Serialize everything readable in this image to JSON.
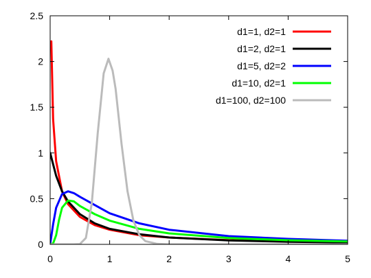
{
  "chart_data": {
    "type": "line",
    "title": "",
    "xlabel": "",
    "ylabel": "",
    "xlim": [
      0,
      5
    ],
    "ylim": [
      0,
      2.5
    ],
    "grid": false,
    "legend_position": "top-right",
    "x_ticks": [
      "0",
      "1",
      "2",
      "3",
      "4",
      "5"
    ],
    "y_ticks": [
      "0",
      "0.5",
      "1",
      "1.5",
      "2",
      "2.5"
    ],
    "series": [
      {
        "name": "d1=1, d2=1",
        "color": "#ff0000",
        "x": [
          0.02,
          0.05,
          0.1,
          0.2,
          0.3,
          0.5,
          0.75,
          1,
          1.5,
          2,
          3,
          4,
          5
        ],
        "y": [
          2.22,
          1.37,
          0.91,
          0.58,
          0.44,
          0.3,
          0.21,
          0.16,
          0.1,
          0.075,
          0.046,
          0.032,
          0.024
        ]
      },
      {
        "name": "d1=2, d2=1",
        "color": "#000000",
        "x": [
          0,
          0.1,
          0.2,
          0.3,
          0.5,
          0.75,
          1,
          1.5,
          2,
          3,
          4,
          5
        ],
        "y": [
          1,
          0.75,
          0.58,
          0.47,
          0.33,
          0.23,
          0.17,
          0.11,
          0.075,
          0.043,
          0.028,
          0.021
        ]
      },
      {
        "name": "d1=5, d2=2",
        "color": "#0000ff",
        "x": [
          0,
          0.05,
          0.1,
          0.2,
          0.3,
          0.4,
          0.5,
          0.75,
          1,
          1.5,
          2,
          3,
          4,
          5
        ],
        "y": [
          0,
          0.22,
          0.4,
          0.55,
          0.58,
          0.56,
          0.52,
          0.43,
          0.34,
          0.23,
          0.16,
          0.09,
          0.06,
          0.04
        ]
      },
      {
        "name": "d1=10, d2=1",
        "color": "#00ff00",
        "x": [
          0,
          0.05,
          0.1,
          0.15,
          0.2,
          0.3,
          0.4,
          0.5,
          0.75,
          1,
          1.5,
          2,
          3,
          4,
          5
        ],
        "y": [
          0,
          0.01,
          0.1,
          0.27,
          0.4,
          0.48,
          0.47,
          0.42,
          0.33,
          0.26,
          0.17,
          0.12,
          0.07,
          0.045,
          0.032
        ]
      },
      {
        "name": "d1=100, d2=100",
        "color": "#bbbbbb",
        "x": [
          0,
          0.4,
          0.5,
          0.6,
          0.7,
          0.8,
          0.9,
          0.98,
          1.05,
          1.1,
          1.2,
          1.3,
          1.4,
          1.5,
          1.6,
          1.8,
          2,
          5
        ],
        "y": [
          0,
          0,
          0.003,
          0.07,
          0.45,
          1.22,
          1.87,
          2.03,
          1.9,
          1.7,
          1.1,
          0.58,
          0.26,
          0.1,
          0.035,
          0.005,
          0,
          0
        ]
      }
    ]
  }
}
